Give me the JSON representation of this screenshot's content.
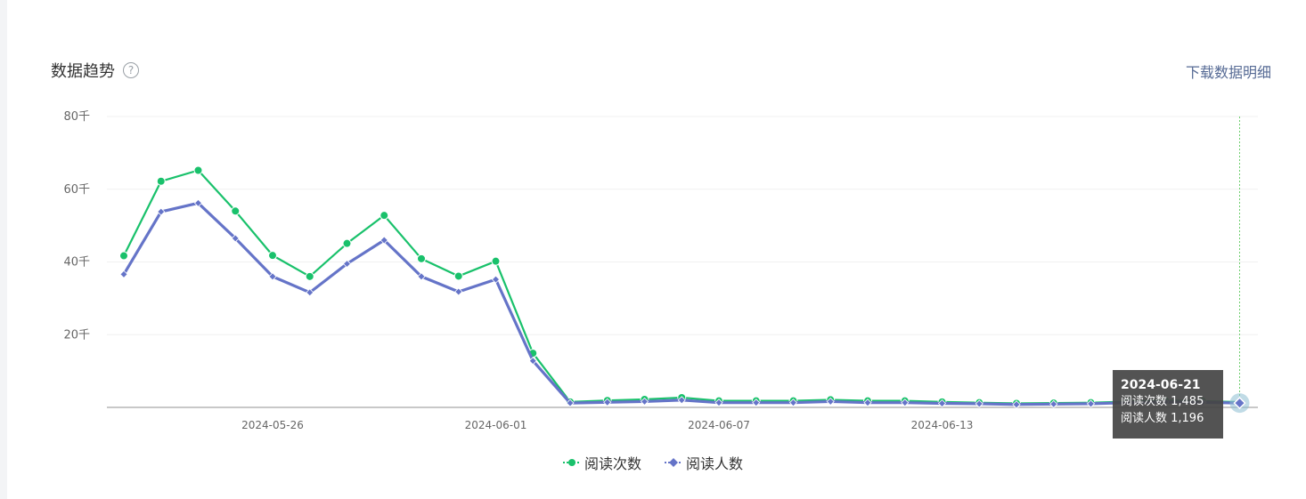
{
  "header": {
    "title": "数据趋势",
    "help_glyph": "?",
    "download_label": "下载数据明细"
  },
  "tooltip": {
    "date": "2024-06-21",
    "rows": [
      "阅读次数 1,485",
      "阅读人数 1,196"
    ]
  },
  "colors": {
    "series_reads": "#19c16b",
    "series_readers": "#6574c8",
    "link": "#576b95",
    "crosshair": "#6fcf6f"
  },
  "chart_data": {
    "type": "line",
    "x": [
      "2024-05-22",
      "2024-05-23",
      "2024-05-24",
      "2024-05-25",
      "2024-05-26",
      "2024-05-27",
      "2024-05-28",
      "2024-05-29",
      "2024-05-30",
      "2024-05-31",
      "2024-06-01",
      "2024-06-02",
      "2024-06-03",
      "2024-06-04",
      "2024-06-05",
      "2024-06-06",
      "2024-06-07",
      "2024-06-08",
      "2024-06-09",
      "2024-06-10",
      "2024-06-11",
      "2024-06-12",
      "2024-06-13",
      "2024-06-14",
      "2024-06-15",
      "2024-06-16",
      "2024-06-17",
      "2024-06-18",
      "2024-06-19",
      "2024-06-20",
      "2024-06-21"
    ],
    "x_ticks": [
      "2024-05-26",
      "2024-06-01",
      "2024-06-07",
      "2024-06-13"
    ],
    "y_ticks": [
      20000,
      40000,
      60000,
      80000
    ],
    "y_tick_labels": [
      "20千",
      "40千",
      "60千",
      "80千"
    ],
    "ylim": [
      0,
      80000
    ],
    "grid": true,
    "legend_position": "bottom",
    "series": [
      {
        "name": "阅读次数",
        "values": [
          41700,
          62200,
          65200,
          54000,
          41800,
          36000,
          45100,
          52800,
          40900,
          36100,
          40200,
          14900,
          1500,
          1900,
          2200,
          2700,
          1800,
          1800,
          1800,
          2100,
          1800,
          1800,
          1500,
          1300,
          1100,
          1200,
          1300,
          1600,
          1900,
          1700,
          1485
        ]
      },
      {
        "name": "阅读人数",
        "values": [
          36600,
          53800,
          56200,
          46500,
          36000,
          31600,
          39500,
          46000,
          36000,
          31800,
          35200,
          12800,
          1200,
          1400,
          1600,
          2000,
          1300,
          1300,
          1300,
          1600,
          1300,
          1300,
          1100,
          1000,
          800,
          900,
          1000,
          1300,
          1500,
          1400,
          1196
        ]
      }
    ]
  }
}
